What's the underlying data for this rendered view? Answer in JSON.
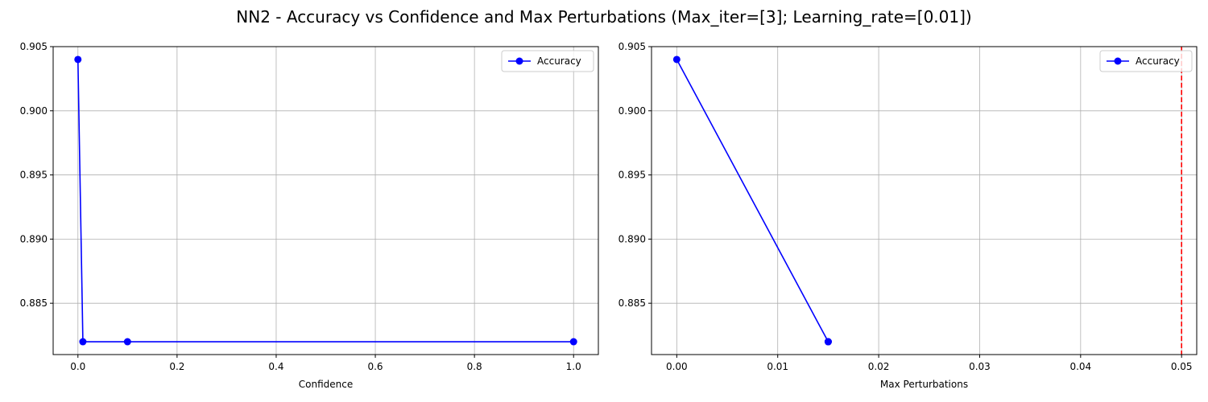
{
  "figure": {
    "title": "NN2 - Accuracy vs Confidence and Max Perturbations (Max_iter=[3]; Learning_rate=[0.01])"
  },
  "colors": {
    "series": "#0000ff",
    "reference_line": "#ff0000",
    "grid": "#b0b0b0",
    "legend_border": "#cccccc"
  },
  "chart_data": [
    {
      "type": "line",
      "xlabel": "Confidence",
      "ylabel": "",
      "xlim": [
        -0.05,
        1.05
      ],
      "ylim": [
        0.881,
        0.905
      ],
      "xticks": [
        0.0,
        0.2,
        0.4,
        0.6,
        0.8,
        1.0
      ],
      "xtick_labels": [
        "0.0",
        "0.2",
        "0.4",
        "0.6",
        "0.8",
        "1.0"
      ],
      "yticks": [
        0.885,
        0.89,
        0.895,
        0.9,
        0.905
      ],
      "ytick_labels": [
        "0.885",
        "0.890",
        "0.895",
        "0.900",
        "0.905"
      ],
      "grid": true,
      "legend": "top-right",
      "series": [
        {
          "name": "Accuracy",
          "color": "#0000ff",
          "marker": "circle",
          "x": [
            0.0,
            0.01,
            0.1,
            1.0
          ],
          "y": [
            0.904,
            0.882,
            0.882,
            0.882
          ]
        }
      ],
      "reference_lines": []
    },
    {
      "type": "line",
      "xlabel": "Max Perturbations",
      "ylabel": "",
      "xlim": [
        -0.0025,
        0.0515
      ],
      "ylim": [
        0.881,
        0.905
      ],
      "xticks": [
        0.0,
        0.01,
        0.02,
        0.03,
        0.04,
        0.05
      ],
      "xtick_labels": [
        "0.00",
        "0.01",
        "0.02",
        "0.03",
        "0.04",
        "0.05"
      ],
      "yticks": [
        0.885,
        0.89,
        0.895,
        0.9,
        0.905
      ],
      "ytick_labels": [
        "0.885",
        "0.890",
        "0.895",
        "0.900",
        "0.905"
      ],
      "grid": true,
      "legend": "top-right",
      "series": [
        {
          "name": "Accuracy",
          "color": "#0000ff",
          "marker": "circle",
          "x": [
            0.0,
            0.015,
            0.015,
            0.015
          ],
          "y": [
            0.904,
            0.882,
            0.882,
            0.882
          ]
        }
      ],
      "reference_lines": [
        {
          "axis": "x",
          "value": 0.05,
          "color": "#ff0000",
          "style": "dashed"
        }
      ]
    }
  ]
}
